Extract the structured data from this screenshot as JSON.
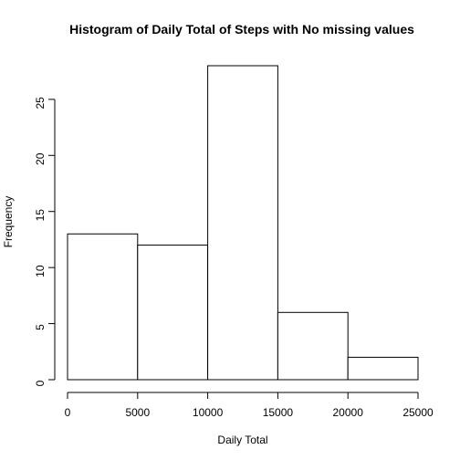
{
  "chart_data": {
    "type": "bar",
    "title": "Histogram of Daily Total of Steps with No missing values",
    "xlabel": "Daily Total",
    "ylabel": "Frequency",
    "bins": [
      {
        "start": 0,
        "end": 5000,
        "count": 13
      },
      {
        "start": 5000,
        "end": 10000,
        "count": 12
      },
      {
        "start": 10000,
        "end": 15000,
        "count": 28
      },
      {
        "start": 15000,
        "end": 20000,
        "count": 6
      },
      {
        "start": 20000,
        "end": 25000,
        "count": 2
      }
    ],
    "xlim": [
      0,
      25000
    ],
    "ylim": [
      0,
      28
    ],
    "x_ticks": [
      0,
      5000,
      10000,
      15000,
      20000,
      25000
    ],
    "x_tick_labels": [
      "0",
      "5000",
      "10000",
      "15000",
      "20000",
      "25000"
    ],
    "y_ticks": [
      0,
      5,
      10,
      15,
      20,
      25
    ],
    "y_tick_labels": [
      "0",
      "5",
      "10",
      "15",
      "20",
      "25"
    ],
    "grid": false,
    "bar_fill": "#ffffff",
    "bar_stroke": "#000000"
  }
}
